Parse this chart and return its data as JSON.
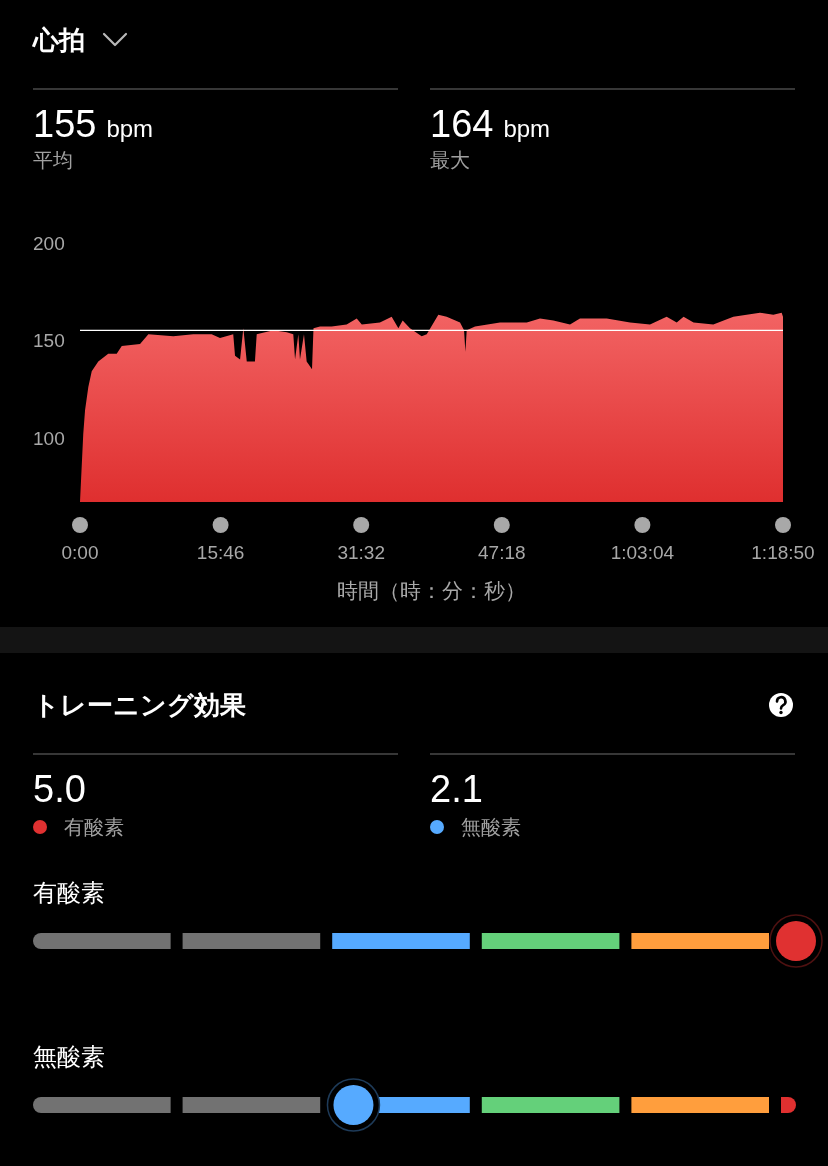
{
  "chart_data": [
    {
      "type": "area",
      "title": "心拍",
      "annotations": [
        "155 bpm",
        "平均",
        "164 bpm",
        "最大"
      ],
      "xlabel": "時間（時：分：秒）",
      "x": [
        0,
        22,
        34,
        56,
        79,
        123,
        190,
        247,
        281,
        404,
        460,
        628,
        762,
        886,
        942,
        1031,
        1043,
        1077,
        1099,
        1122,
        1177,
        1189,
        1301,
        1391,
        1435,
        1447,
        1469,
        1480,
        1507,
        1525,
        1561,
        1571,
        1615,
        1693,
        1794,
        1862,
        1896,
        2018,
        2097,
        2142,
        2171,
        2220,
        2299,
        2333,
        2411,
        2467,
        2557,
        2584,
        2593,
        2602,
        2658,
        2826,
        3006,
        3095,
        3185,
        3297,
        3364,
        3544,
        3701,
        3835,
        3947,
        4015,
        4061,
        4128,
        4261,
        4396,
        4575,
        4665,
        4721,
        4730
      ],
      "series": [
        {
          "color": "#f04848",
          "values": [
            67,
            102,
            114,
            126,
            134,
            139,
            143,
            143,
            147,
            148,
            153,
            152,
            153,
            153,
            151,
            153,
            142,
            140,
            156,
            139,
            139,
            153,
            155,
            154,
            153,
            140,
            153,
            140,
            153,
            139,
            135,
            156,
            157,
            157,
            158,
            161,
            158,
            159,
            162,
            156,
            160,
            156,
            152,
            153,
            163,
            162,
            159,
            155,
            144,
            155,
            157,
            159,
            159,
            161,
            160,
            158,
            161,
            161,
            159,
            158,
            162,
            159,
            162,
            159,
            158,
            162,
            164,
            163,
            164,
            162
          ]
        }
      ],
      "xlim": [
        0,
        4730
      ],
      "ylim": [
        67,
        200
      ],
      "xticks": [
        {
          "value": 0,
          "label": "0:00"
        },
        {
          "value": 946,
          "label": "15:46"
        },
        {
          "value": 1892,
          "label": "31:32"
        },
        {
          "value": 2838,
          "label": "47:18"
        },
        {
          "value": 3784,
          "label": "1:03:04"
        },
        {
          "value": 4730,
          "label": "1:18:50"
        }
      ],
      "yticks": [
        100,
        150,
        200
      ],
      "ref_lines": [
        {
          "axis": "y",
          "value": 155,
          "color": "#ffffff"
        }
      ]
    },
    {
      "type": "other",
      "title": "トレーニング効果",
      "categories": [
        "有酸素",
        "無酸素"
      ],
      "values": [
        5.0,
        2.1
      ],
      "value_labels": [
        "5.0",
        "2.1"
      ],
      "colors": [
        "#e03131",
        "#56aaff"
      ]
    }
  ]
}
